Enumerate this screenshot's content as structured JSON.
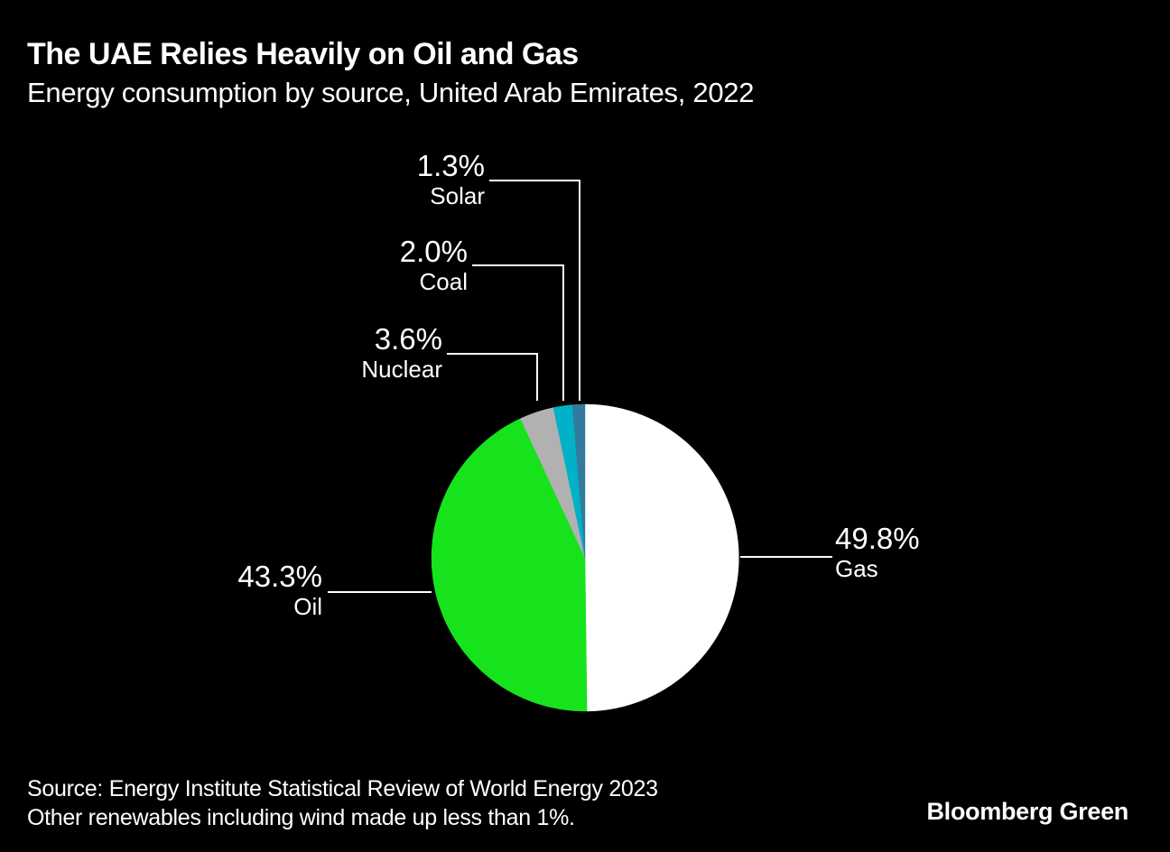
{
  "header": {
    "title": "The UAE Relies Heavily on Oil and Gas",
    "subtitle": "Energy consumption by source, United Arab Emirates, 2022"
  },
  "chart_data": {
    "type": "pie",
    "title": "The UAE Relies Heavily on Oil and Gas",
    "subtitle": "Energy consumption by source, United Arab Emirates, 2022",
    "unit": "%",
    "start_angle_deg": 0,
    "direction": "clockwise",
    "slices": [
      {
        "label": "Gas",
        "value": 49.8,
        "display": "49.8%",
        "color": "#ffffff"
      },
      {
        "label": "Oil",
        "value": 43.3,
        "display": "43.3%",
        "color": "#17e31d"
      },
      {
        "label": "Nuclear",
        "value": 3.6,
        "display": "3.6%",
        "color": "#b1b1b1"
      },
      {
        "label": "Coal",
        "value": 2.0,
        "display": "2.0%",
        "color": "#00b1c7"
      },
      {
        "label": "Solar",
        "value": 1.3,
        "display": "1.3%",
        "color": "#337b9e"
      }
    ],
    "legend_position": "callouts",
    "grid": false
  },
  "footer": {
    "source_line1": "Source: Energy Institute Statistical Review of World Energy 2023",
    "source_line2": "Other renewables including wind made up less than 1%.",
    "brand": "Bloomberg Green"
  },
  "colors": {
    "background": "#000000",
    "text": "#ffffff",
    "leader_line": "#ffffff"
  }
}
